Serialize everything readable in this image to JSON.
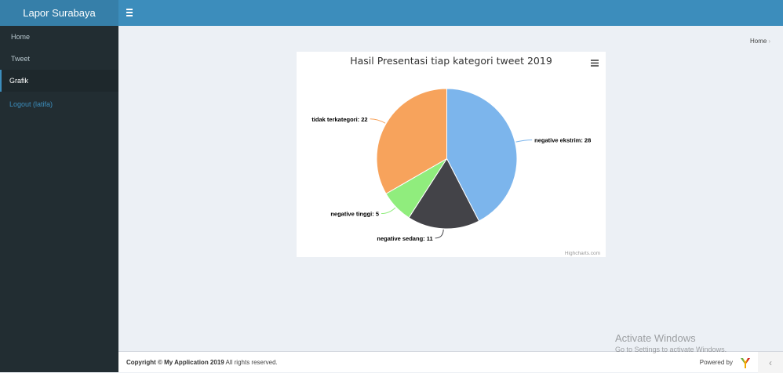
{
  "app": {
    "title": "Lapor Surabaya"
  },
  "sidebar": {
    "items": [
      {
        "label": "Home",
        "active": false
      },
      {
        "label": "Tweet",
        "active": false
      },
      {
        "label": "Grafik",
        "active": true
      }
    ],
    "logout_label": "Logout (latifa)"
  },
  "breadcrumb": {
    "home_label": "Home"
  },
  "chart_data": {
    "type": "pie",
    "title": "Hasil Presentasi tiap kategori tweet 2019",
    "credits": "Highcharts.com",
    "slices": [
      {
        "label": "negative ekstrim",
        "value": 28,
        "color": "#7cb5ec"
      },
      {
        "label": "negative sedang",
        "value": 11,
        "color": "#434348"
      },
      {
        "label": "negative tinggi",
        "value": 5,
        "color": "#90ed7d"
      },
      {
        "label": "tidak terkategori",
        "value": 22,
        "color": "#f7a35c"
      }
    ]
  },
  "footer": {
    "copyright_prefix": "Copyright © My Application 2019",
    "copyright_suffix": " All rights reserved.",
    "powered_by": "Powered by"
  },
  "watermark": {
    "line1": "Activate Windows",
    "line2": "Go to Settings to activate Windows."
  }
}
